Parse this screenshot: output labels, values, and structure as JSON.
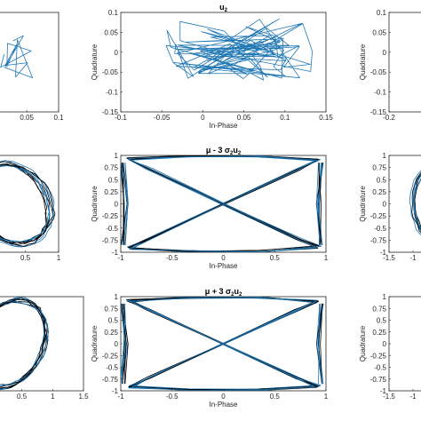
{
  "chart_data": [
    {
      "id": "p00",
      "type": "line",
      "title": "",
      "xlabel": "",
      "ylabel": "",
      "xticks": [
        "0.05",
        "0.1"
      ],
      "yticks": [],
      "xlim": [
        -0.02,
        0.1
      ],
      "ylim": [
        -0.15,
        0.1
      ],
      "series_colors": [
        "#1f77b4"
      ],
      "trace": {
        "kind": "cluster",
        "cx": 0.03,
        "cy": 0.0,
        "rx": 0.03,
        "ry": 0.05,
        "lines": 14
      }
    },
    {
      "id": "p01",
      "type": "line",
      "title": "u",
      "title_sub": "2",
      "xlabel": "In-Phase",
      "ylabel": "Quadrature",
      "xticks": [
        "-0.1",
        "-0.05",
        "0",
        "0.05",
        "0.1",
        "0.15"
      ],
      "yticks": [
        "0.1",
        "0.05",
        "0",
        "-0.05",
        "-0.1",
        "-0.15"
      ],
      "xlim": [
        -0.1,
        0.15
      ],
      "ylim": [
        -0.15,
        0.1
      ],
      "series_colors": [
        "#1f77b4"
      ],
      "trace": {
        "kind": "cluster",
        "cx": 0.045,
        "cy": 0.0,
        "rx": 0.09,
        "ry": 0.07,
        "lines": 90
      }
    },
    {
      "id": "p02",
      "type": "line",
      "title": "",
      "xlabel": "",
      "ylabel": "Quadrature",
      "xticks": [
        "-0.2"
      ],
      "yticks": [
        "0.1",
        "0.05",
        "0",
        "-0.05",
        "-0.1",
        "-0.15"
      ],
      "xlim": [
        -0.2,
        0.2
      ],
      "ylim": [
        -0.15,
        0.1
      ],
      "series_colors": [
        "#1f77b4"
      ],
      "trace": {
        "kind": "cluster",
        "cx": 0.1,
        "cy": -0.02,
        "rx": 0.1,
        "ry": 0.06,
        "lines": 10
      }
    },
    {
      "id": "p10",
      "type": "line",
      "title": "",
      "xlabel": "",
      "ylabel": "",
      "xticks": [
        "0.5",
        "1"
      ],
      "yticks": [],
      "xlim": [
        -0.2,
        1
      ],
      "ylim": [
        -1,
        1
      ],
      "series_colors": [
        "#1f77b4",
        "#000000"
      ],
      "trace": {
        "kind": "ellipse",
        "cx": 0.3,
        "cy": 0.0,
        "rx": 0.55,
        "ry": 0.85,
        "n": 10,
        "ang": 0.25
      }
    },
    {
      "id": "p11",
      "type": "line",
      "title": "μ - 3 σ",
      "title_sub": "2",
      "title_tail": "u",
      "title_tail_sub": "2",
      "xlabel": "In-Phase",
      "ylabel": "Quadrature",
      "xticks": [
        "-1",
        "-0.5",
        "0",
        "0.5",
        "1"
      ],
      "yticks": [
        "1",
        "0.75",
        "0.5",
        "0.25",
        "0",
        "-0.25",
        "-0.5",
        "-0.75",
        "-1"
      ],
      "xlim": [
        -1,
        1
      ],
      "ylim": [
        -1,
        1
      ],
      "series_colors": [
        "#1f77b4",
        "#000000"
      ],
      "trace": {
        "kind": "bowtie",
        "n": 9
      }
    },
    {
      "id": "p12",
      "type": "line",
      "title": "",
      "xlabel": "",
      "ylabel": "Quadrature",
      "xticks": [
        "-1.5",
        "-1"
      ],
      "yticks": [
        "1",
        "0.75",
        "0.5",
        "0.25",
        "0",
        "-0.25",
        "-0.5",
        "-0.75",
        "-1"
      ],
      "xlim": [
        -1.5,
        1.5
      ],
      "ylim": [
        -1,
        1
      ],
      "series_colors": [
        "#1f77b4",
        "#000000"
      ],
      "trace": {
        "kind": "ellipse",
        "cx": -0.3,
        "cy": 0.0,
        "rx": 0.7,
        "ry": 0.9,
        "n": 9,
        "ang": 0.1
      }
    },
    {
      "id": "p20",
      "type": "line",
      "title": "",
      "xlabel": "",
      "ylabel": "",
      "xticks": [
        "0.5",
        "1",
        "1.5"
      ],
      "yticks": [],
      "xlim": [
        -0.2,
        1.5
      ],
      "ylim": [
        -1,
        1
      ],
      "series_colors": [
        "#1f77b4",
        "#000000"
      ],
      "trace": {
        "kind": "ellipse",
        "cx": 0.3,
        "cy": 0.0,
        "rx": 0.55,
        "ry": 0.95,
        "n": 10,
        "ang": -0.25
      }
    },
    {
      "id": "p21",
      "type": "line",
      "title": "μ + 3 σ",
      "title_sub": "2",
      "title_tail": "u",
      "title_tail_sub": "2",
      "xlabel": "In-Phase",
      "ylabel": "Quadrature",
      "xticks": [
        "-1",
        "-0.5",
        "0",
        "0.5",
        "1"
      ],
      "yticks": [
        "1",
        "0.75",
        "0.5",
        "0.25",
        "0",
        "-0.25",
        "-0.5",
        "-0.75",
        "-1"
      ],
      "xlim": [
        -1,
        1
      ],
      "ylim": [
        -1,
        1
      ],
      "series_colors": [
        "#1f77b4",
        "#000000"
      ],
      "trace": {
        "kind": "bowtie",
        "n": 9
      }
    },
    {
      "id": "p22",
      "type": "line",
      "title": "",
      "xlabel": "",
      "ylabel": "Quadrature",
      "xticks": [
        "-1.5",
        "-1"
      ],
      "yticks": [
        "1",
        "0.75",
        "0.5",
        "0.25",
        "0",
        "-0.25",
        "-0.5",
        "-0.75",
        "-1"
      ],
      "xlim": [
        -1.5,
        1.5
      ],
      "ylim": [
        -1,
        1
      ],
      "series_colors": [
        "#1f77b4",
        "#000000"
      ],
      "trace": {
        "kind": "none"
      }
    }
  ]
}
